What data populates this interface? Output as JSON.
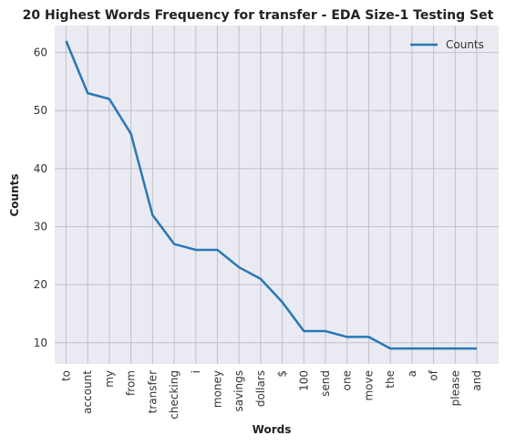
{
  "chart_data": {
    "type": "line",
    "title": "20 Highest Words Frequency for transfer - EDA Size-1 Testing Set",
    "xlabel": "Words",
    "ylabel": "Counts",
    "categories": [
      "to",
      "account",
      "my",
      "from",
      "transfer",
      "checking",
      "i",
      "money",
      "savings",
      "dollars",
      "$",
      "100",
      "send",
      "one",
      "move",
      "the",
      "a",
      "of",
      "please",
      "and"
    ],
    "series": [
      {
        "name": "Counts",
        "values": [
          62,
          53,
          52,
          46,
          32,
          27,
          26,
          26,
          23,
          21,
          17,
          12,
          12,
          11,
          11,
          9,
          9,
          9,
          9,
          9
        ]
      }
    ],
    "yticks": [
      10,
      20,
      30,
      40,
      50,
      60
    ],
    "ylim": [
      6.35,
      64.65
    ],
    "grid": true,
    "legend": "top-right",
    "colors": {
      "line": "#2878b5",
      "background": "#eaeaf2",
      "grid": "#c0c0c8"
    }
  }
}
